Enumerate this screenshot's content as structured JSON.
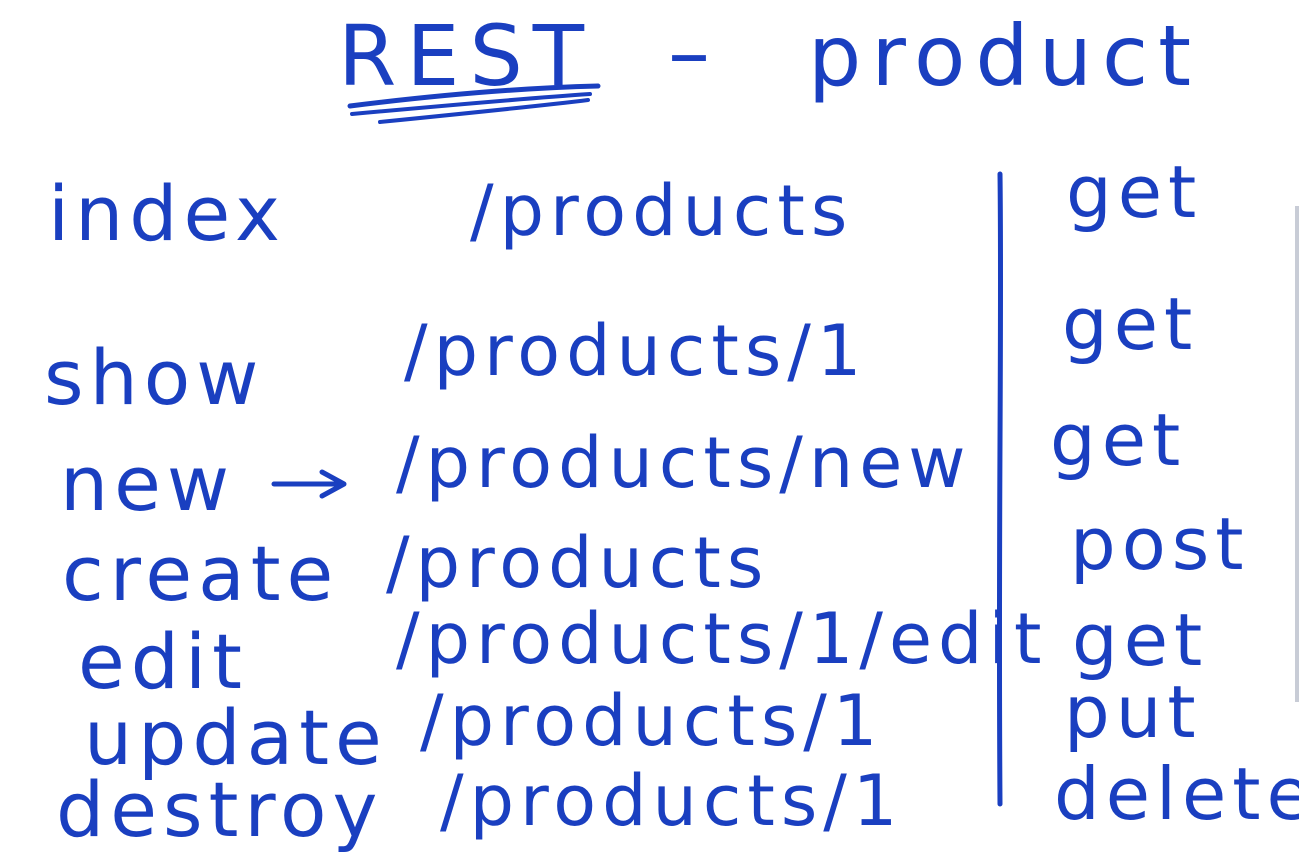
{
  "title": {
    "left": "REST",
    "dash": "–",
    "right": "product"
  },
  "routes": [
    {
      "action": "index",
      "path": "/products",
      "verb": "get"
    },
    {
      "action": "show",
      "path": "/products/1",
      "verb": "get"
    },
    {
      "action": "new",
      "path": "/products/new",
      "verb": "get"
    },
    {
      "action": "create",
      "path": "/products",
      "verb": "post"
    },
    {
      "action": "edit",
      "path": "/products/1/edit",
      "verb": "get"
    },
    {
      "action": "update",
      "path": "/products/1",
      "verb": "put"
    },
    {
      "action": "destroy",
      "path": "/products/1",
      "verb": "delete"
    }
  ],
  "ink_color": "#1a3fc0"
}
